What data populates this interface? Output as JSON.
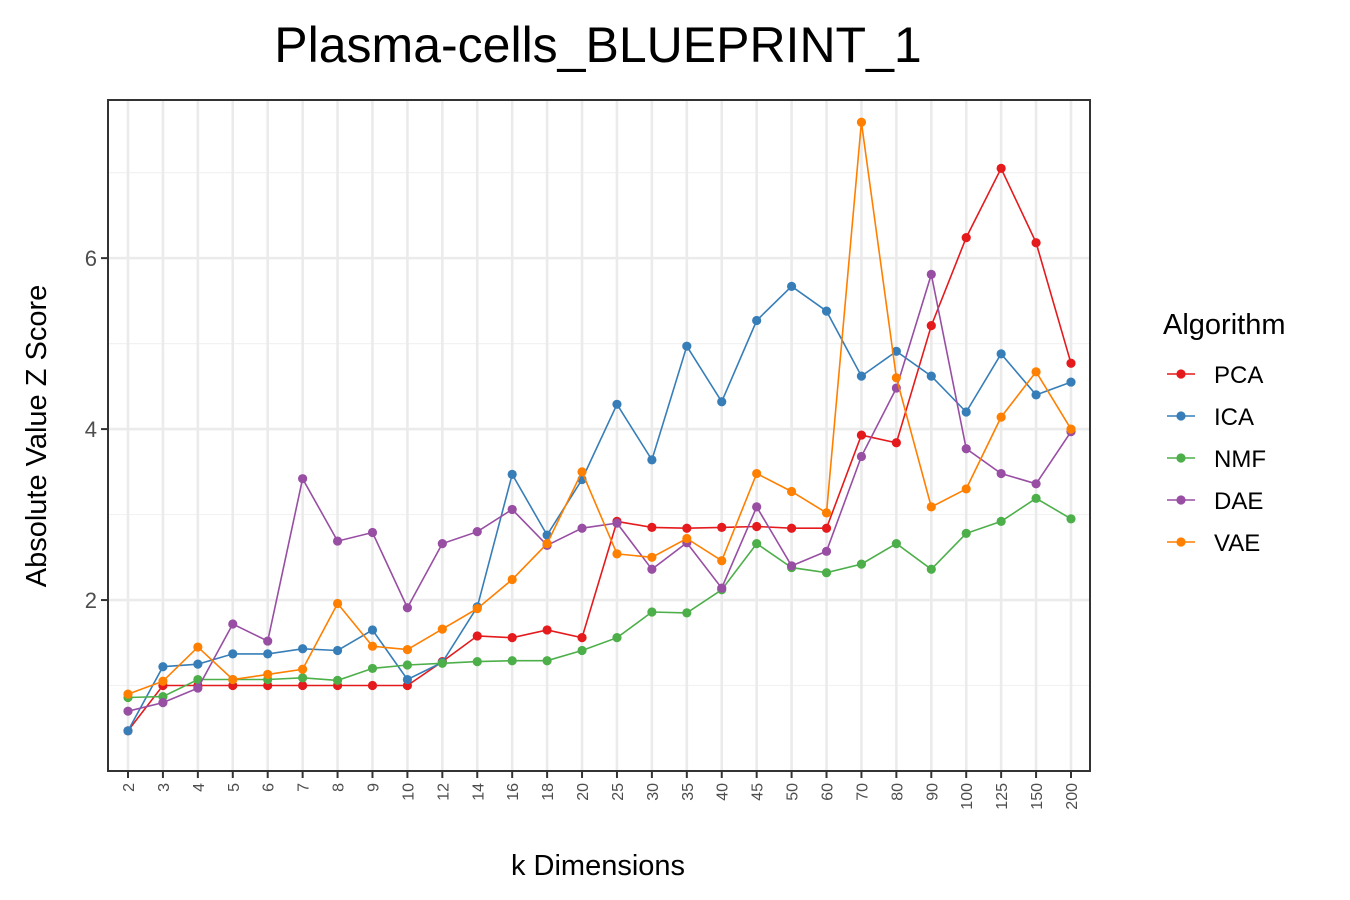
{
  "chart_data": {
    "type": "line",
    "title": "Plasma-cells_BLUEPRINT_1",
    "xlabel": "k Dimensions",
    "ylabel": "Absolute Value Z Score",
    "categories": [
      "2",
      "3",
      "4",
      "5",
      "6",
      "7",
      "8",
      "9",
      "10",
      "12",
      "14",
      "16",
      "18",
      "20",
      "25",
      "30",
      "35",
      "40",
      "45",
      "50",
      "60",
      "70",
      "80",
      "90",
      "100",
      "125",
      "150",
      "200"
    ],
    "ylim": [
      0.0,
      7.85
    ],
    "yticks": [
      2,
      4,
      6
    ],
    "grid": true,
    "legend": {
      "title": "Algorithm",
      "position": "right"
    },
    "series": [
      {
        "name": "PCA",
        "color": "#e41a1c",
        "values": [
          0.47,
          1.0,
          1.0,
          1.0,
          1.0,
          1.0,
          1.0,
          1.0,
          1.0,
          1.28,
          1.58,
          1.56,
          1.65,
          1.56,
          2.92,
          2.85,
          2.84,
          2.85,
          2.86,
          2.84,
          2.84,
          3.93,
          3.84,
          5.21,
          6.24,
          7.05,
          6.18,
          4.77
        ]
      },
      {
        "name": "ICA",
        "color": "#377eb8",
        "values": [
          0.47,
          1.22,
          1.25,
          1.37,
          1.37,
          1.43,
          1.41,
          1.65,
          1.07,
          1.27,
          1.92,
          3.47,
          2.76,
          3.41,
          4.29,
          3.64,
          4.97,
          4.32,
          5.27,
          5.67,
          5.38,
          4.62,
          4.91,
          4.62,
          4.2,
          4.88,
          4.4,
          4.55
        ]
      },
      {
        "name": "NMF",
        "color": "#4daf4a",
        "values": [
          0.86,
          0.87,
          1.07,
          1.07,
          1.07,
          1.09,
          1.06,
          1.2,
          1.24,
          1.26,
          1.28,
          1.29,
          1.29,
          1.41,
          1.56,
          1.86,
          1.85,
          2.12,
          2.66,
          2.38,
          2.32,
          2.42,
          2.66,
          2.36,
          2.78,
          2.92,
          3.19,
          2.95
        ]
      },
      {
        "name": "DAE",
        "color": "#984ea3",
        "values": [
          0.7,
          0.8,
          0.97,
          1.72,
          1.52,
          3.42,
          2.69,
          2.79,
          1.91,
          2.66,
          2.8,
          3.06,
          2.64,
          2.84,
          2.9,
          2.36,
          2.67,
          2.14,
          3.09,
          2.4,
          2.57,
          3.68,
          4.48,
          5.81,
          3.77,
          3.48,
          3.36,
          3.97
        ]
      },
      {
        "name": "VAE",
        "color": "#ff7f00",
        "values": [
          0.9,
          1.05,
          1.45,
          1.07,
          1.13,
          1.19,
          1.96,
          1.46,
          1.42,
          1.66,
          1.9,
          2.24,
          2.66,
          3.5,
          2.54,
          2.5,
          2.72,
          2.46,
          3.48,
          3.27,
          3.02,
          7.59,
          4.6,
          3.09,
          3.3,
          4.14,
          4.67,
          4.0
        ]
      }
    ]
  }
}
